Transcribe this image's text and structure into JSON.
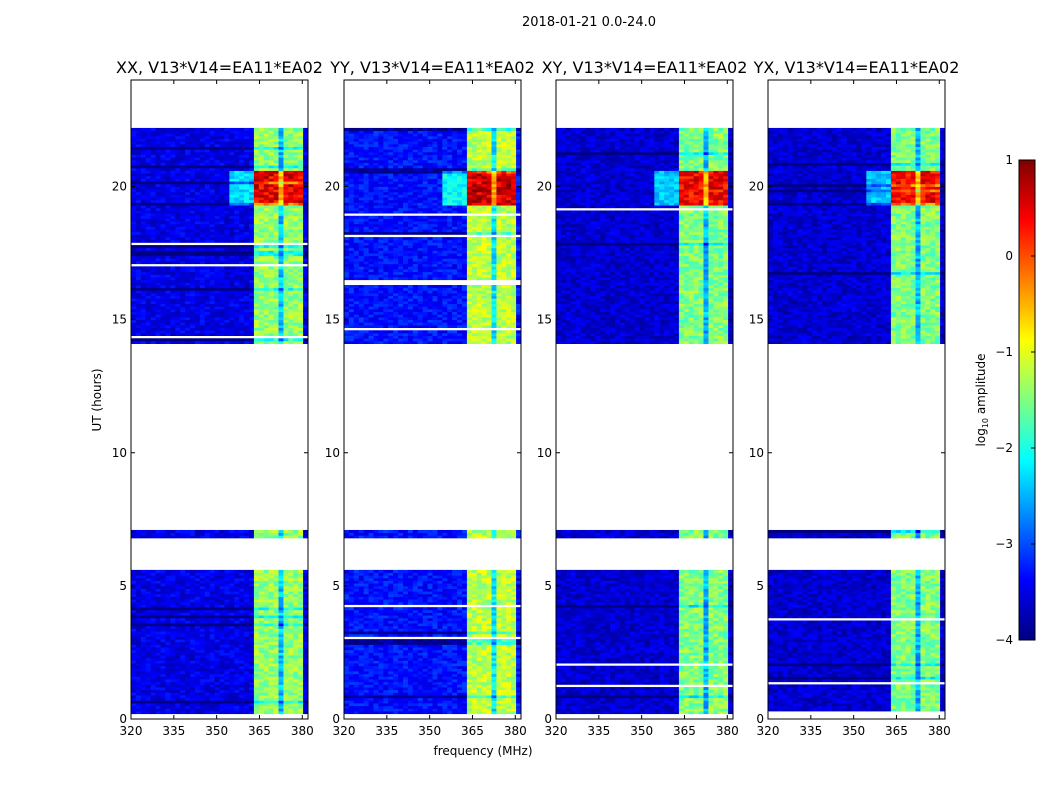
{
  "suptitle": "2018-01-21 0.0-24.0",
  "chart_data": {
    "type": "heatmap",
    "xlabel": "frequency (MHz)",
    "ylabel": "UT (hours)",
    "xlim": [
      320,
      382
    ],
    "ylim": [
      0,
      24
    ],
    "xticks": [
      320,
      335,
      350,
      365,
      380
    ],
    "yticks": [
      0,
      5,
      10,
      15,
      20
    ],
    "colormap": "jet",
    "colorbar": {
      "label": "log10 amplitude",
      "range": [
        -4,
        1
      ],
      "ticks": [
        -4,
        -3,
        -2,
        -1,
        0,
        1
      ],
      "tick_labels": [
        "−4",
        "−3",
        "−2",
        "−1",
        "0",
        "1"
      ]
    },
    "data_time_ranges": [
      [
        0.2,
        5.6
      ],
      [
        6.8,
        7.1
      ],
      [
        14.1,
        22.2
      ]
    ],
    "blank_time_ranges": [
      [
        5.6,
        6.8
      ],
      [
        7.1,
        14.1
      ],
      [
        22.2,
        24.0
      ]
    ],
    "rfi_band_mhz": [
      363,
      381
    ],
    "strong_rfi_hours": [
      19.3,
      20.6
    ],
    "panels": [
      {
        "name": "XX",
        "title": "XX, V13*V14=EA11*EA02",
        "base_level": -3.5,
        "rfi_level": -1.4,
        "strong_level": 0.5
      },
      {
        "name": "YY",
        "title": "YY, V13*V14=EA11*EA02",
        "base_level": -3.3,
        "rfi_level": -1.2,
        "strong_level": 0.6
      },
      {
        "name": "XY",
        "title": "XY, V13*V14=EA11*EA02",
        "base_level": -3.6,
        "rfi_level": -1.5,
        "strong_level": 0.4
      },
      {
        "name": "YX",
        "title": "YX, V13*V14=EA11*EA02",
        "base_level": -3.6,
        "rfi_level": -1.5,
        "strong_level": 0.4
      }
    ]
  }
}
